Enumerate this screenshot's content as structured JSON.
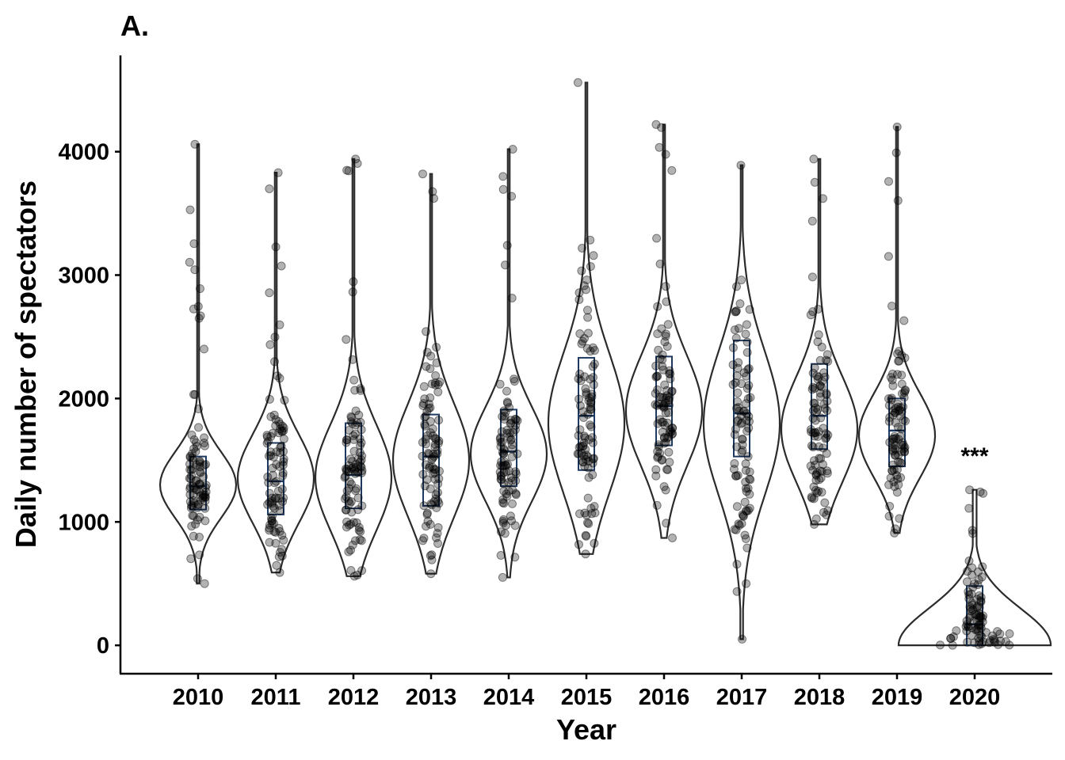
{
  "panel_label": "A.",
  "chart_data": {
    "type": "violin",
    "xlabel": "Year",
    "ylabel": "Daily number of spectators",
    "ylim": [
      -230,
      4780
    ],
    "yticks": [
      0,
      1000,
      2000,
      3000,
      4000
    ],
    "categories": [
      "2010",
      "2011",
      "2012",
      "2013",
      "2014",
      "2015",
      "2016",
      "2017",
      "2018",
      "2019",
      "2020"
    ],
    "groups": [
      {
        "year": "2010",
        "min": 500,
        "q1": 1100,
        "median": 1290,
        "q3": 1530,
        "max": 4060,
        "mode": 1300
      },
      {
        "year": "2011",
        "min": 590,
        "q1": 1060,
        "median": 1330,
        "q3": 1640,
        "max": 3830,
        "mode": 1350
      },
      {
        "year": "2012",
        "min": 560,
        "q1": 1110,
        "median": 1380,
        "q3": 1800,
        "max": 3940,
        "mode": 1360
      },
      {
        "year": "2013",
        "min": 580,
        "q1": 1130,
        "median": 1530,
        "q3": 1870,
        "max": 3820,
        "mode": 1500
      },
      {
        "year": "2014",
        "min": 550,
        "q1": 1290,
        "median": 1570,
        "q3": 1910,
        "max": 4020,
        "mode": 1550
      },
      {
        "year": "2015",
        "min": 740,
        "q1": 1420,
        "median": 1860,
        "q3": 2330,
        "max": 4560,
        "mode": 1800
      },
      {
        "year": "2016",
        "min": 870,
        "q1": 1620,
        "median": 1940,
        "q3": 2340,
        "max": 4220,
        "mode": 1900
      },
      {
        "year": "2017",
        "min": 50,
        "q1": 1530,
        "median": 1880,
        "q3": 2470,
        "max": 3890,
        "mode": 1800
      },
      {
        "year": "2018",
        "min": 980,
        "q1": 1590,
        "median": 1860,
        "q3": 2280,
        "max": 3940,
        "mode": 1750
      },
      {
        "year": "2019",
        "min": 910,
        "q1": 1450,
        "median": 1740,
        "q3": 2000,
        "max": 4200,
        "mode": 1700
      },
      {
        "year": "2020",
        "min": 0,
        "q1": 0,
        "median": 170,
        "q3": 480,
        "max": 1260,
        "mode": 0
      }
    ],
    "annotations": [
      {
        "year": "2020",
        "text": "***",
        "y": 1560
      }
    ],
    "point_color": "#000000",
    "point_opacity": 0.3,
    "violin_color": "#2b2b2b",
    "box_color": "#1f3a60",
    "grid": false,
    "legend": "none"
  }
}
